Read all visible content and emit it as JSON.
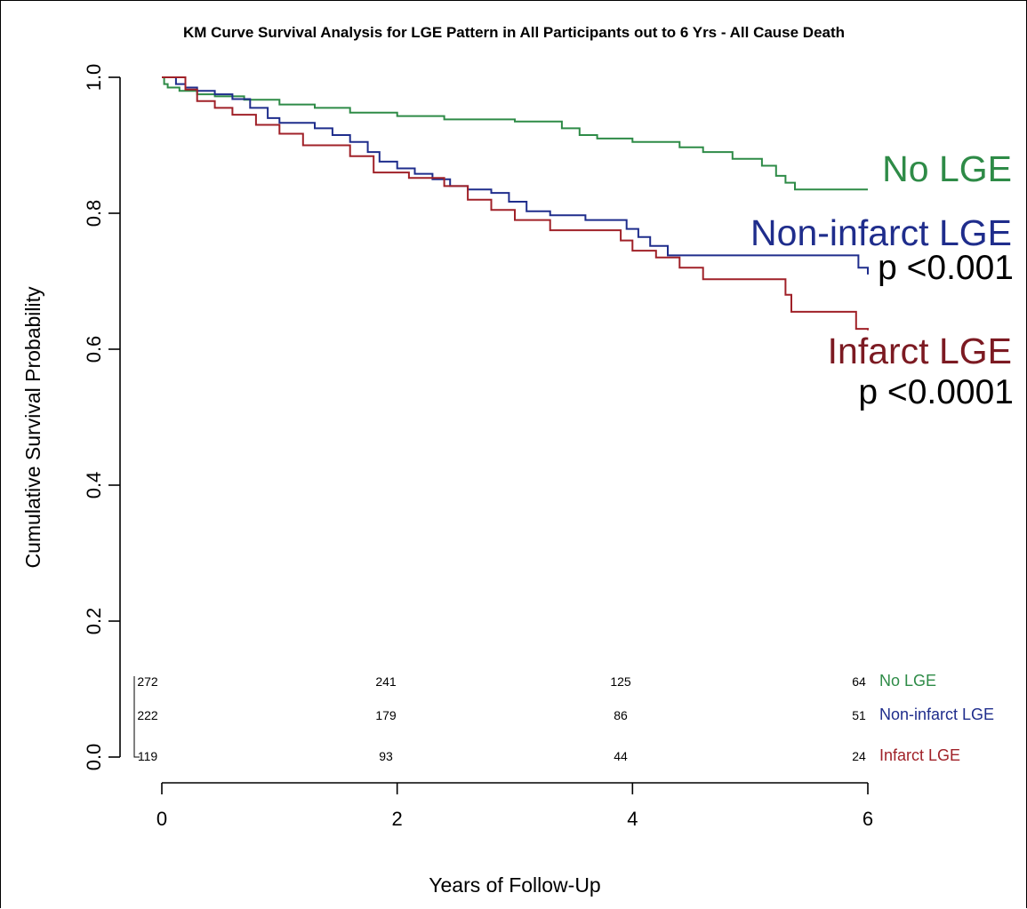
{
  "chart_data": {
    "type": "line",
    "title": "KM Curve Survival Analysis for LGE Pattern in All Participants out to 6 Yrs - All Cause Death",
    "xlabel": "Years of Follow-Up",
    "ylabel": "Cumulative Survival Probability",
    "xlim": [
      0,
      6
    ],
    "ylim": [
      0,
      1
    ],
    "x_ticks": [
      0,
      2,
      4,
      6
    ],
    "y_ticks": [
      0.0,
      0.2,
      0.4,
      0.6,
      0.8,
      1.0
    ],
    "x_tick_labels": [
      "0",
      "2",
      "4",
      "6"
    ],
    "y_tick_labels": [
      "0.0",
      "0.2",
      "0.4",
      "0.6",
      "0.8",
      "1.0"
    ],
    "grid": false,
    "series": [
      {
        "name": "No LGE",
        "color": "#2e8b47",
        "x": [
          0,
          0.02,
          0.05,
          0.15,
          0.3,
          0.45,
          0.7,
          1.0,
          1.3,
          1.6,
          2.0,
          2.4,
          3.0,
          3.4,
          3.55,
          3.7,
          4.0,
          4.4,
          4.6,
          4.85,
          5.1,
          5.22,
          5.3,
          5.38,
          6.0
        ],
        "y": [
          1.0,
          0.99,
          0.985,
          0.98,
          0.975,
          0.972,
          0.967,
          0.96,
          0.955,
          0.948,
          0.943,
          0.938,
          0.935,
          0.925,
          0.915,
          0.91,
          0.905,
          0.897,
          0.89,
          0.88,
          0.87,
          0.855,
          0.845,
          0.835,
          0.835
        ]
      },
      {
        "name": "Non-infarct LGE",
        "color": "#1f2d8c",
        "x": [
          0,
          0.12,
          0.2,
          0.3,
          0.45,
          0.6,
          0.75,
          0.9,
          1.0,
          1.3,
          1.45,
          1.6,
          1.75,
          1.85,
          2.0,
          2.15,
          2.3,
          2.45,
          2.6,
          2.8,
          2.95,
          3.1,
          3.3,
          3.6,
          3.95,
          4.05,
          4.15,
          4.3,
          5.85,
          5.92,
          6.0
        ],
        "y": [
          1.0,
          0.99,
          0.985,
          0.98,
          0.975,
          0.968,
          0.955,
          0.94,
          0.933,
          0.925,
          0.915,
          0.905,
          0.89,
          0.876,
          0.866,
          0.858,
          0.85,
          0.84,
          0.835,
          0.83,
          0.817,
          0.803,
          0.797,
          0.79,
          0.777,
          0.765,
          0.752,
          0.738,
          0.738,
          0.72,
          0.71
        ]
      },
      {
        "name": "Infarct LGE",
        "color": "#a02128",
        "x": [
          0,
          0.2,
          0.3,
          0.45,
          0.6,
          0.8,
          1.0,
          1.2,
          1.6,
          1.8,
          2.1,
          2.4,
          2.6,
          2.8,
          3.0,
          3.3,
          3.9,
          4.0,
          4.2,
          4.4,
          4.6,
          5.3,
          5.35,
          5.9,
          6.0
        ],
        "y": [
          1.0,
          0.982,
          0.965,
          0.955,
          0.945,
          0.93,
          0.917,
          0.9,
          0.884,
          0.86,
          0.852,
          0.84,
          0.82,
          0.805,
          0.79,
          0.775,
          0.76,
          0.745,
          0.735,
          0.72,
          0.703,
          0.68,
          0.655,
          0.63,
          0.628
        ]
      }
    ],
    "annotations": [
      {
        "text": "No LGE",
        "color": "#2e8b47"
      },
      {
        "text": "Non-infarct LGE",
        "color": "#1f2d8c"
      },
      {
        "text": "p <0.001",
        "color": "#000000"
      },
      {
        "text": "Infarct LGE",
        "color": "#7c1a22"
      },
      {
        "text": "p <0.0001",
        "color": "#000000"
      }
    ],
    "risk_table": {
      "times": [
        0,
        2,
        4,
        6
      ],
      "rows": [
        {
          "name": "No LGE",
          "color": "#2e8b47",
          "counts": [
            "272",
            "241",
            "125",
            "64"
          ]
        },
        {
          "name": "Non-infarct LGE",
          "color": "#1f2d8c",
          "counts": [
            "222",
            "179",
            "86",
            "51"
          ]
        },
        {
          "name": "Infarct LGE",
          "color": "#a02128",
          "counts": [
            "119",
            "93",
            "44",
            "24"
          ]
        }
      ]
    }
  }
}
